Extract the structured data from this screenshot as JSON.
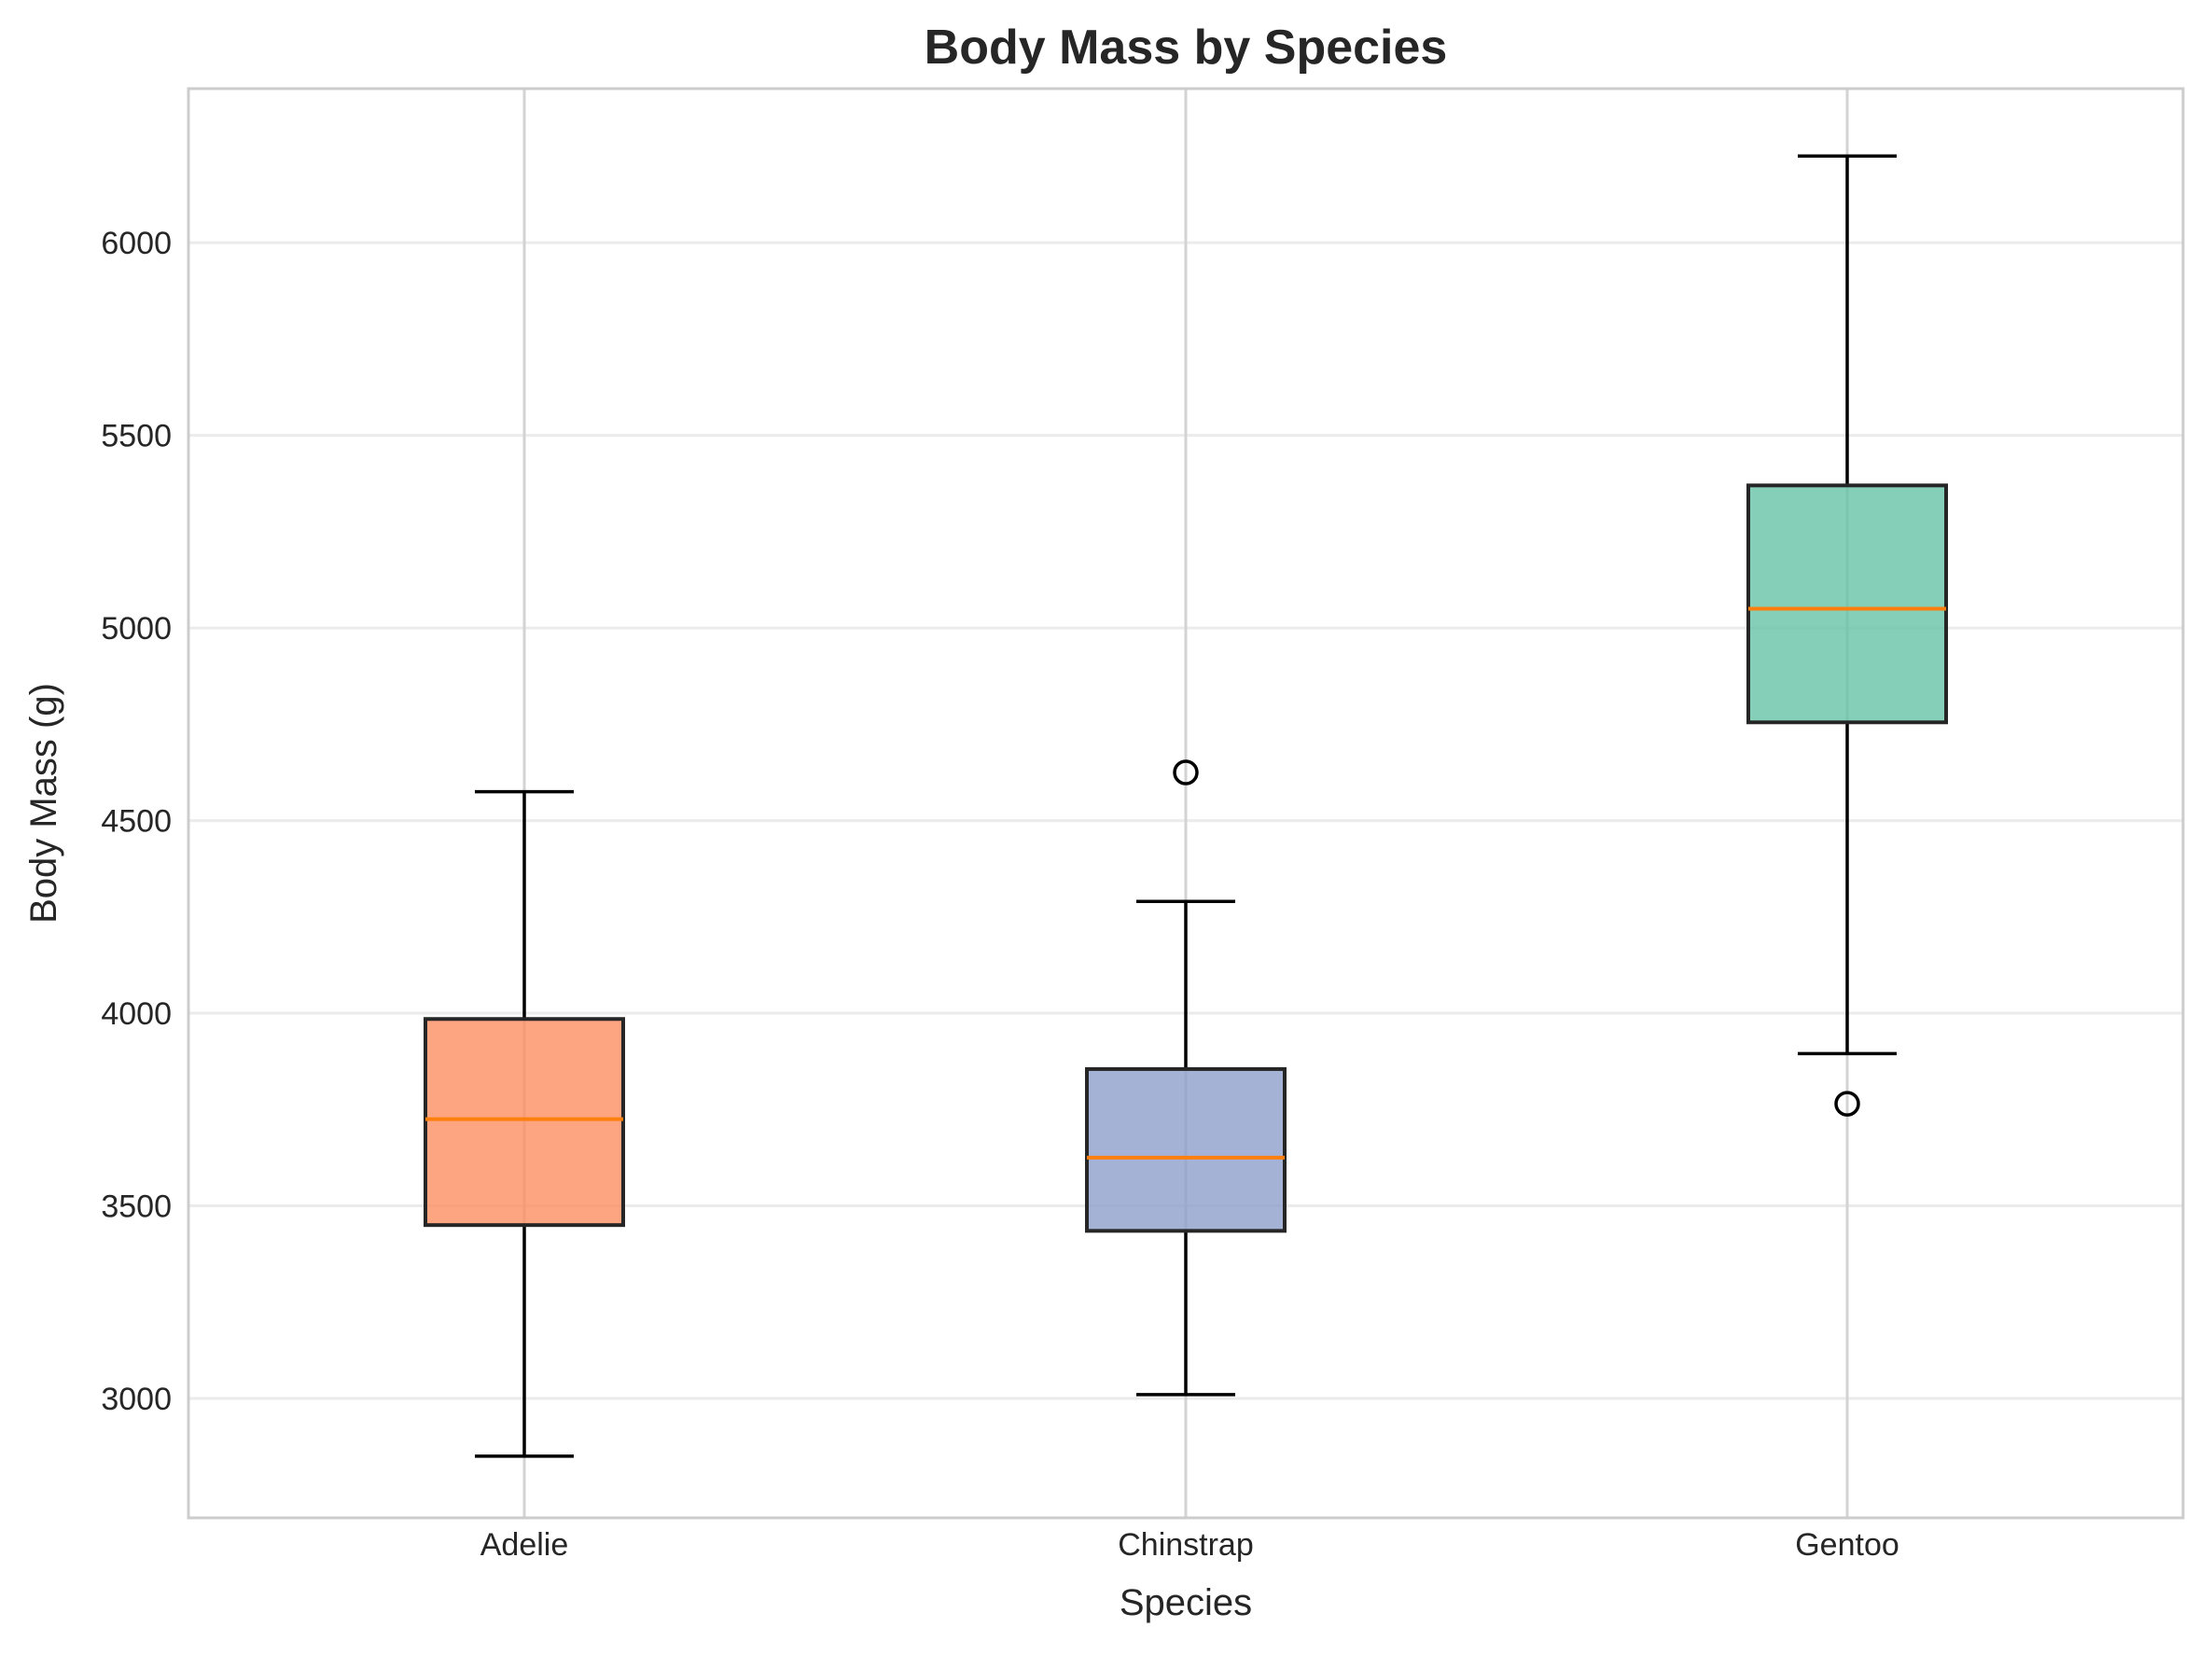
{
  "chart_data": {
    "type": "box",
    "title": "Body Mass by Species",
    "xlabel": "Species",
    "ylabel": "Body Mass (g)",
    "categories": [
      "Adelie",
      "Chinstrap",
      "Gentoo"
    ],
    "y_ticks": [
      3000,
      3500,
      4000,
      4500,
      5000,
      5500,
      6000
    ],
    "ylim": [
      2690,
      6400
    ],
    "grid": true,
    "boxes": [
      {
        "category": "Adelie",
        "whisker_low": 2850,
        "q1": 3450,
        "median": 3725,
        "q3": 3985,
        "whisker_high": 4575,
        "outliers": [],
        "color": "#fc8d62"
      },
      {
        "category": "Chinstrap",
        "whisker_low": 3010,
        "q1": 3435,
        "median": 3625,
        "q3": 3855,
        "whisker_high": 4290,
        "outliers": [
          4625
        ],
        "color": "#8da0cb"
      },
      {
        "category": "Gentoo",
        "whisker_low": 3895,
        "q1": 4755,
        "median": 5050,
        "q3": 5370,
        "whisker_high": 6225,
        "outliers": [
          3765
        ],
        "color": "#66c2a5"
      }
    ],
    "colors": {
      "median": "#ff7f0e",
      "box_edge": "#262626",
      "whisker": "#000000",
      "grid": "#ebebeb",
      "spine": "#cccccc"
    }
  }
}
